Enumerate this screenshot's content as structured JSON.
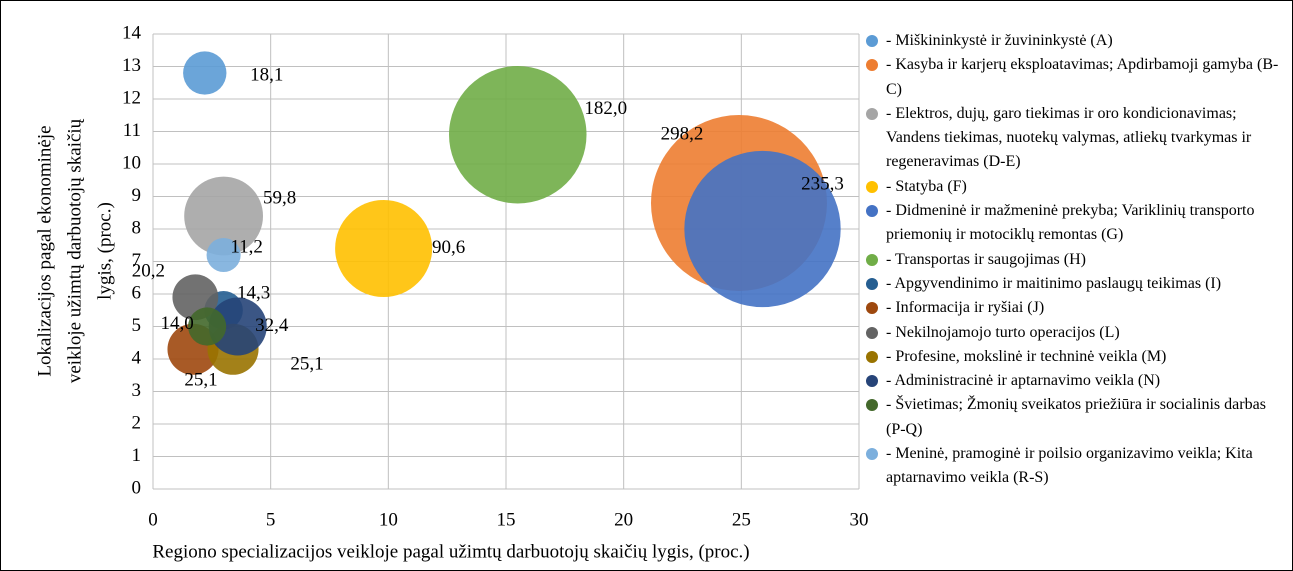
{
  "chart_data": {
    "type": "bubble",
    "xlabel": "Regiono specializacijos veikloje pagal užimtų darbuotojų skaičių lygis, (proc.)",
    "ylabel": [
      "Lokalizacijos pagal ekonominėje",
      "veikloje užimtų  darbuotojų  skaičių",
      "lygis, (proc.)"
    ],
    "xlim": [
      0,
      30
    ],
    "xticks": [
      0,
      5,
      10,
      15,
      20,
      25,
      30
    ],
    "ylim": [
      0,
      14
    ],
    "yticks": [
      0,
      1,
      2,
      3,
      4,
      5,
      6,
      7,
      8,
      9,
      10,
      11,
      12,
      13,
      14
    ],
    "grid": true,
    "legend": "right",
    "series": [
      {
        "name": "- Miškininkystė ir žuvininkystė (A)",
        "color": "#5b9bd5",
        "x": [
          2.2
        ],
        "values": [
          12.8
        ],
        "sizes": [
          18.1
        ],
        "value_labels": [
          "18,1"
        ]
      },
      {
        "name": "- Kasyba ir karjerų eksploatavimas; Apdirbamoji gamyba (B-C)",
        "color": "#ed7d31",
        "x": [
          24.9
        ],
        "values": [
          8.8
        ],
        "sizes": [
          298.2
        ],
        "value_labels": [
          "298,2"
        ]
      },
      {
        "name": "- Elektros, dujų, garo tiekimas ir oro kondicionavimas; Vandens tiekimas, nuotekų valymas, atliekų tvarkymas ir regeneravimas (D-E)",
        "color": "#a5a5a5",
        "x": [
          3.0
        ],
        "values": [
          8.4
        ],
        "sizes": [
          59.8
        ],
        "value_labels": [
          "59,8"
        ]
      },
      {
        "name": "- Statyba (F)",
        "color": "#ffc000",
        "x": [
          9.8
        ],
        "values": [
          7.4
        ],
        "sizes": [
          90.6
        ],
        "value_labels": [
          "90,6"
        ]
      },
      {
        "name": "- Didmeninė ir mažmeninė prekyba; Variklinių transporto priemonių ir motociklų remontas (G)",
        "color": "#4472c4",
        "x": [
          25.9
        ],
        "values": [
          8.0
        ],
        "sizes": [
          235.3
        ],
        "value_labels": [
          "235,3"
        ]
      },
      {
        "name": "- Transportas ir saugojimas (H)",
        "color": "#70ad47",
        "x": [
          15.5
        ],
        "values": [
          10.9
        ],
        "sizes": [
          182.0
        ],
        "value_labels": [
          "182,0"
        ]
      },
      {
        "name": "- Apgyvendinimo ir maitinimo paslaugų teikimas (I)",
        "color": "#255e91",
        "x": [
          3.0
        ],
        "values": [
          5.5
        ],
        "sizes": [
          14.3
        ],
        "value_labels": [
          "14,3"
        ]
      },
      {
        "name": "- Informacija ir ryšiai (J)",
        "color": "#9e480e",
        "x": [
          1.7
        ],
        "values": [
          4.3
        ],
        "sizes": [
          25.1
        ],
        "value_labels": [
          "25,1"
        ]
      },
      {
        "name": "- Nekilnojamojo turto operacijos (L)",
        "color": "#636363",
        "x": [
          1.8
        ],
        "values": [
          5.9
        ],
        "sizes": [
          20.2
        ],
        "value_labels": [
          "20,2"
        ]
      },
      {
        "name": "- Profesine, mokslinė ir techninė veikla (M)",
        "color": "#997300",
        "x": [
          3.4
        ],
        "values": [
          4.3
        ],
        "sizes": [
          25.1
        ],
        "value_labels": [
          "25,1"
        ]
      },
      {
        "name": "- Administracinė ir aptarnavimo veikla (N)",
        "color": "#264478",
        "x": [
          3.6
        ],
        "values": [
          5.0
        ],
        "sizes": [
          32.4
        ],
        "value_labels": [
          "32,4"
        ]
      },
      {
        "name": "- Švietimas; Žmonių sveikatos priežiūra ir socialinis darbas (P-Q)",
        "color": "#43682b",
        "x": [
          2.3
        ],
        "values": [
          5.0
        ],
        "sizes": [
          14.0
        ],
        "value_labels": [
          "14,0"
        ]
      },
      {
        "name": "- Meninė, pramoginė ir poilsio organizavimo veikla; Kita aptarnavimo veikla (R-S)",
        "color": "#7cafdd",
        "x": [
          3.0
        ],
        "values": [
          7.2
        ],
        "sizes": [
          11.2
        ],
        "value_labels": [
          "11,2"
        ]
      }
    ]
  }
}
